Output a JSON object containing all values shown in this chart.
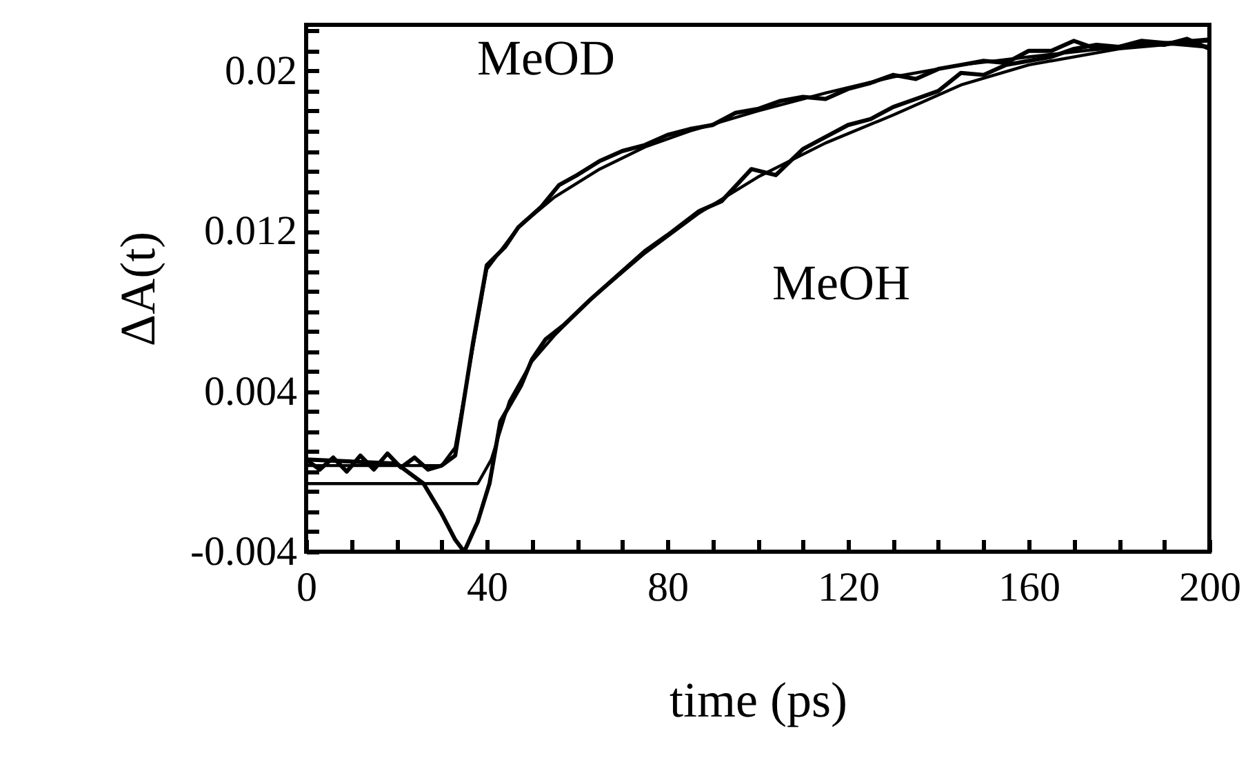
{
  "chart_data": {
    "type": "line",
    "xlabel": "time (ps)",
    "ylabel": "ΔA(t)",
    "xlim": [
      0,
      200
    ],
    "ylim": [
      -0.004,
      0.0223
    ],
    "xticks": [
      0,
      {
        "value": 10,
        "label": null
      },
      {
        "value": 20,
        "label": null
      },
      {
        "value": 30,
        "label": null
      },
      40,
      {
        "value": 50,
        "label": null
      },
      {
        "value": 60,
        "label": null
      },
      {
        "value": 70,
        "label": null
      },
      80,
      {
        "value": 90,
        "label": null
      },
      {
        "value": 100,
        "label": null
      },
      {
        "value": 110,
        "label": null
      },
      120,
      {
        "value": 130,
        "label": null
      },
      {
        "value": 140,
        "label": null
      },
      {
        "value": 150,
        "label": null
      },
      160,
      {
        "value": 170,
        "label": null
      },
      {
        "value": 180,
        "label": null
      },
      {
        "value": 190,
        "label": null
      },
      200
    ],
    "yticks": [
      -0.004,
      {
        "value": -0.003,
        "label": null
      },
      {
        "value": -0.002,
        "label": null
      },
      {
        "value": -0.001,
        "label": null
      },
      {
        "value": 0,
        "label": null
      },
      {
        "value": 0.001,
        "label": null
      },
      {
        "value": 0.002,
        "label": null
      },
      {
        "value": 0.003,
        "label": null
      },
      0.004,
      {
        "value": 0.005,
        "label": null
      },
      {
        "value": 0.006,
        "label": null
      },
      {
        "value": 0.007,
        "label": null
      },
      {
        "value": 0.008,
        "label": null
      },
      {
        "value": 0.009,
        "label": null
      },
      {
        "value": 0.01,
        "label": null
      },
      {
        "value": 0.011,
        "label": null
      },
      0.012,
      {
        "value": 0.013,
        "label": null
      },
      {
        "value": 0.014,
        "label": null
      },
      {
        "value": 0.015,
        "label": null
      },
      {
        "value": 0.016,
        "label": null
      },
      {
        "value": 0.017,
        "label": null
      },
      {
        "value": 0.018,
        "label": null
      },
      {
        "value": 0.019,
        "label": null
      },
      0.02,
      {
        "value": 0.021,
        "label": null
      },
      {
        "value": 0.022,
        "label": null
      }
    ],
    "grid": false,
    "marker": "none",
    "line_style": "solid",
    "series": [
      {
        "color": "#000000",
        "x": [
          0,
          3,
          6,
          9,
          12,
          15,
          18,
          21,
          24,
          27,
          30,
          33,
          37,
          40,
          44,
          47,
          52,
          56,
          60,
          65,
          70,
          75,
          80,
          85,
          90,
          95,
          100,
          105,
          110,
          115,
          120,
          125,
          130,
          135,
          140,
          145,
          150,
          155,
          160,
          165,
          170,
          175,
          180,
          185,
          190,
          195,
          200
        ],
        "values": [
          0.0006,
          0.0001,
          0.0007,
          0,
          0.0008,
          0.0001,
          0.0009,
          0.0002,
          0.0007,
          0.0001,
          0.0003,
          0.0008,
          0.0065,
          0.0103,
          0.0112,
          0.0122,
          0.0132,
          0.0143,
          0.0148,
          0.0155,
          0.016,
          0.0163,
          0.0168,
          0.0171,
          0.0173,
          0.0179,
          0.0181,
          0.0185,
          0.0187,
          0.0186,
          0.0191,
          0.0194,
          0.0198,
          0.0196,
          0.0201,
          0.0203,
          0.0205,
          0.0204,
          0.021,
          0.021,
          0.0215,
          0.0211,
          0.0212,
          0.0214,
          0.0213,
          0.0216,
          0.0211
        ]
      },
      {
        "color": "#000000",
        "x": [
          0,
          30,
          33,
          40,
          47,
          55,
          65,
          75,
          85,
          100,
          115,
          130,
          145,
          160,
          180,
          200
        ],
        "values": [
          0.0003,
          0.0003,
          0.0012,
          0.0101,
          0.0122,
          0.0137,
          0.0151,
          0.0162,
          0.017,
          0.018,
          0.0189,
          0.0197,
          0.0203,
          0.0207,
          0.0212,
          0.0216
        ]
      },
      {
        "color": "#000000",
        "x": [
          0,
          20,
          26,
          30,
          33,
          35,
          38,
          40.6,
          43,
          47.6,
          50,
          53,
          57,
          63,
          68,
          75,
          80,
          87,
          92,
          98.6,
          104,
          110,
          115,
          120,
          125,
          130,
          135,
          140,
          145,
          150,
          155,
          160,
          165,
          170,
          175,
          180,
          185,
          190,
          195,
          200
        ],
        "values": [
          0.0006,
          0.0004,
          -0.0006,
          -0.0021,
          -0.0034,
          -0.004,
          -0.0025,
          -0.0006,
          0.0025,
          0.0043,
          0.0056,
          0.0066,
          0.0073,
          0.0086,
          0.0096,
          0.011,
          0.0118,
          0.013,
          0.0135,
          0.0151,
          0.0148,
          0.0161,
          0.0167,
          0.0173,
          0.0176,
          0.0182,
          0.0186,
          0.019,
          0.0199,
          0.0198,
          0.0203,
          0.0205,
          0.0207,
          0.0211,
          0.0213,
          0.0212,
          0.0215,
          0.0214,
          0.0213,
          0.0212
        ]
      },
      {
        "color": "#000000",
        "x": [
          0,
          38,
          41,
          45,
          50,
          55,
          63,
          75,
          87,
          100,
          115,
          130,
          145,
          160,
          180,
          200
        ],
        "values": [
          -0.0006,
          -0.0006,
          0.0006,
          0.0035,
          0.0055,
          0.0068,
          0.0086,
          0.0109,
          0.0129,
          0.0147,
          0.0164,
          0.0178,
          0.0193,
          0.0203,
          0.0211,
          0.0215
        ]
      }
    ],
    "annotations": [
      "MeOD",
      "MeOH"
    ]
  }
}
